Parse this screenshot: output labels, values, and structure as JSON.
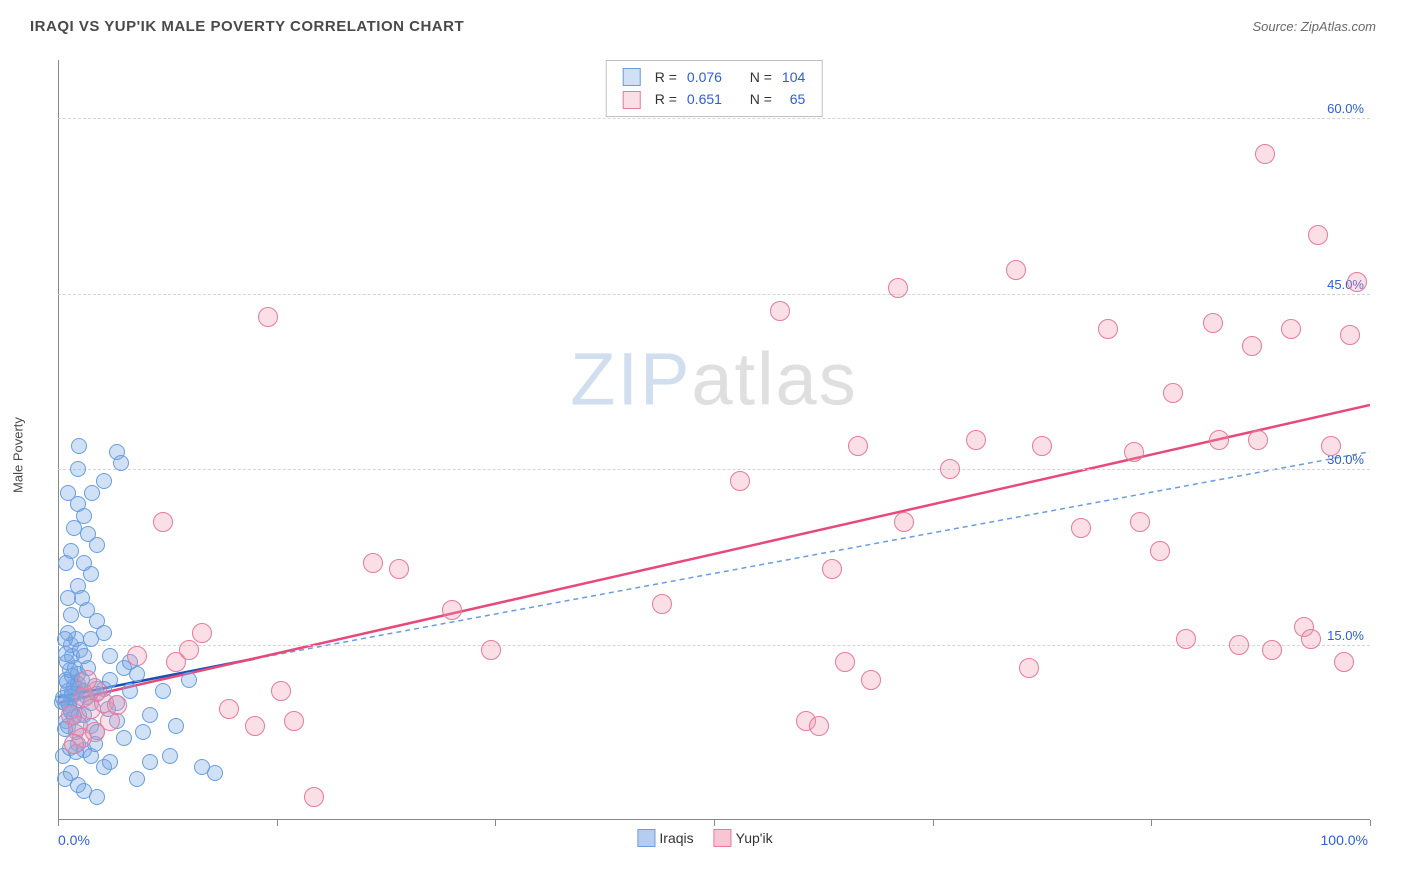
{
  "title": "IRAQI VS YUP'IK MALE POVERTY CORRELATION CHART",
  "source_label": "Source: ZipAtlas.com",
  "y_axis_label": "Male Poverty",
  "watermark": {
    "part1": "ZIP",
    "part2": "atlas"
  },
  "chart": {
    "type": "scatter",
    "xlim": [
      0,
      100
    ],
    "ylim": [
      0,
      65
    ],
    "x_tick_positions": [
      0,
      16.67,
      33.33,
      50,
      66.67,
      83.33,
      100
    ],
    "x_label_min": "0.0%",
    "x_label_max": "100.0%",
    "y_gridlines": [
      {
        "value": 15,
        "label": "15.0%"
      },
      {
        "value": 30,
        "label": "30.0%"
      },
      {
        "value": 45,
        "label": "45.0%"
      },
      {
        "value": 60,
        "label": "60.0%"
      }
    ],
    "plot_background": "#ffffff",
    "grid_color": "#d5d5d5",
    "axis_color": "#888888",
    "label_color": "#2c5fd6"
  },
  "series": [
    {
      "name": "Iraqis",
      "color_fill": "rgba(120,165,225,0.35)",
      "color_stroke": "#6a9de0",
      "marker_radius": 8,
      "R": "0.076",
      "N": "104",
      "trend": {
        "x1": 0,
        "y1": 10.5,
        "x2": 15,
        "y2": 13.8,
        "color": "#1850b5",
        "width": 2.5,
        "dash": ""
      },
      "trend_ext": {
        "x1": 15,
        "y1": 13.8,
        "x2": 100,
        "y2": 31.5,
        "color": "#6a9de0",
        "width": 1.5,
        "dash": "5 4"
      },
      "points": [
        [
          0.5,
          10
        ],
        [
          0.8,
          11
        ],
        [
          0.6,
          12
        ],
        [
          1.0,
          10.5
        ],
        [
          1.2,
          11.5
        ],
        [
          0.9,
          9.5
        ],
        [
          1.4,
          10.2
        ],
        [
          1.1,
          12.3
        ],
        [
          0.7,
          11.8
        ],
        [
          1.3,
          10.8
        ],
        [
          1.6,
          11.2
        ],
        [
          0.4,
          10.4
        ],
        [
          0.85,
          9.8
        ],
        [
          1.1,
          10.9
        ],
        [
          1.5,
          11.6
        ],
        [
          0.3,
          10.1
        ],
        [
          0.6,
          8.5
        ],
        [
          1.0,
          9.2
        ],
        [
          1.2,
          8.8
        ],
        [
          0.8,
          8.0
        ],
        [
          1.4,
          7.5
        ],
        [
          0.5,
          7.8
        ],
        [
          1.6,
          9.0
        ],
        [
          0.9,
          12.8
        ],
        [
          1.3,
          13.0
        ],
        [
          0.7,
          13.5
        ],
        [
          1.5,
          12.5
        ],
        [
          1.1,
          14.0
        ],
        [
          0.6,
          14.2
        ],
        [
          1.0,
          15.0
        ],
        [
          1.4,
          15.5
        ],
        [
          0.8,
          16.0
        ],
        [
          1.7,
          14.5
        ],
        [
          1.8,
          12.0
        ],
        [
          2.0,
          11.0
        ],
        [
          2.2,
          10.5
        ],
        [
          2.5,
          10.0
        ],
        [
          2.3,
          13.0
        ],
        [
          2.8,
          11.5
        ],
        [
          3.0,
          10.8
        ],
        [
          3.5,
          11.2
        ],
        [
          4.0,
          12.0
        ],
        [
          5.0,
          13.0
        ],
        [
          4.5,
          10.0
        ],
        [
          5.5,
          11.0
        ],
        [
          6.0,
          12.5
        ],
        [
          2.0,
          9.0
        ],
        [
          2.5,
          8.0
        ],
        [
          3.0,
          7.5
        ],
        [
          3.8,
          9.5
        ],
        [
          4.5,
          8.5
        ],
        [
          5.0,
          7.0
        ],
        [
          1.5,
          6.5
        ],
        [
          2.0,
          6.0
        ],
        [
          2.5,
          5.5
        ],
        [
          3.5,
          4.5
        ],
        [
          4.0,
          5.0
        ],
        [
          6.0,
          3.5
        ],
        [
          7.0,
          5.0
        ],
        [
          7.0,
          9.0
        ],
        [
          8.0,
          11.0
        ],
        [
          10.0,
          12.0
        ],
        [
          9.0,
          8.0
        ],
        [
          2.0,
          14.0
        ],
        [
          2.5,
          15.5
        ],
        [
          3.0,
          17.0
        ],
        [
          3.5,
          16.0
        ],
        [
          2.2,
          18.0
        ],
        [
          1.5,
          20.0
        ],
        [
          2.0,
          22.0
        ],
        [
          1.0,
          23.0
        ],
        [
          2.5,
          21.0
        ],
        [
          3.0,
          23.5
        ],
        [
          1.2,
          25.0
        ],
        [
          2.0,
          26.0
        ],
        [
          1.5,
          27.0
        ],
        [
          0.8,
          28.0
        ],
        [
          1.0,
          4.0
        ],
        [
          1.5,
          3.0
        ],
        [
          2.0,
          2.5
        ],
        [
          0.5,
          3.5
        ],
        [
          3.0,
          2.0
        ],
        [
          8.5,
          5.5
        ],
        [
          11.0,
          4.5
        ],
        [
          1.0,
          17.5
        ],
        [
          1.8,
          19.0
        ],
        [
          2.3,
          24.5
        ],
        [
          1.5,
          30.0
        ],
        [
          1.6,
          32.0
        ],
        [
          4.5,
          31.5
        ],
        [
          4.8,
          30.5
        ],
        [
          0.4,
          5.5
        ],
        [
          0.9,
          6.2
        ],
        [
          1.4,
          5.8
        ],
        [
          2.8,
          6.5
        ],
        [
          6.5,
          7.5
        ],
        [
          4.0,
          14.0
        ],
        [
          5.5,
          13.5
        ],
        [
          0.5,
          15.5
        ],
        [
          0.8,
          19.0
        ],
        [
          2.6,
          28.0
        ],
        [
          12.0,
          4.0
        ],
        [
          3.5,
          29.0
        ],
        [
          0.6,
          22.0
        ]
      ]
    },
    {
      "name": "Yup'ik",
      "color_fill": "rgba(240,150,175,0.30)",
      "color_stroke": "#e87a9c",
      "marker_radius": 10,
      "R": "0.651",
      "N": "65",
      "trend": {
        "x1": 0,
        "y1": 10,
        "x2": 100,
        "y2": 35.5,
        "color": "#e74a7a",
        "width": 2.5,
        "dash": ""
      },
      "points": [
        [
          1.0,
          9.0
        ],
        [
          2.0,
          10.5
        ],
        [
          1.5,
          8.0
        ],
        [
          3.0,
          11.0
        ],
        [
          2.5,
          9.5
        ],
        [
          4.0,
          8.5
        ],
        [
          1.8,
          7.0
        ],
        [
          2.2,
          12.0
        ],
        [
          3.5,
          10.0
        ],
        [
          1.2,
          6.5
        ],
        [
          2.8,
          7.5
        ],
        [
          4.5,
          9.8
        ],
        [
          8.0,
          25.5
        ],
        [
          9.0,
          13.5
        ],
        [
          11.0,
          16.0
        ],
        [
          13.0,
          9.5
        ],
        [
          15.0,
          8.0
        ],
        [
          18.0,
          8.5
        ],
        [
          19.5,
          2.0
        ],
        [
          17.0,
          11.0
        ],
        [
          6.0,
          14.0
        ],
        [
          10.0,
          14.5
        ],
        [
          24.0,
          22.0
        ],
        [
          26.0,
          21.5
        ],
        [
          30.0,
          18.0
        ],
        [
          33.0,
          14.5
        ],
        [
          16.0,
          43.0
        ],
        [
          46.0,
          18.5
        ],
        [
          52.0,
          29.0
        ],
        [
          55.0,
          43.5
        ],
        [
          57.0,
          8.5
        ],
        [
          58.0,
          8.0
        ],
        [
          59.0,
          21.5
        ],
        [
          60.0,
          13.5
        ],
        [
          61.0,
          32.0
        ],
        [
          62.0,
          12.0
        ],
        [
          64.0,
          45.5
        ],
        [
          64.5,
          25.5
        ],
        [
          68.0,
          30.0
        ],
        [
          70.0,
          32.5
        ],
        [
          73.0,
          47.0
        ],
        [
          74.0,
          13.0
        ],
        [
          75.0,
          32.0
        ],
        [
          78.0,
          25.0
        ],
        [
          80.0,
          42.0
        ],
        [
          82.0,
          31.5
        ],
        [
          82.5,
          25.5
        ],
        [
          84.0,
          23.0
        ],
        [
          85.0,
          36.5
        ],
        [
          88.0,
          42.5
        ],
        [
          88.5,
          32.5
        ],
        [
          90.0,
          15.0
        ],
        [
          91.0,
          40.5
        ],
        [
          91.5,
          32.5
        ],
        [
          92.0,
          57.0
        ],
        [
          94.0,
          42.0
        ],
        [
          95.0,
          16.5
        ],
        [
          95.5,
          15.5
        ],
        [
          96.0,
          50.0
        ],
        [
          97.0,
          32.0
        ],
        [
          98.0,
          13.5
        ],
        [
          98.5,
          41.5
        ],
        [
          99.0,
          46.0
        ],
        [
          92.5,
          14.5
        ],
        [
          86.0,
          15.5
        ]
      ]
    }
  ],
  "legend_bottom": [
    {
      "label": "Iraqis",
      "fill": "rgba(120,165,225,0.55)",
      "stroke": "#6a9de0"
    },
    {
      "label": "Yup'ik",
      "fill": "rgba(240,150,175,0.55)",
      "stroke": "#e87a9c"
    }
  ]
}
